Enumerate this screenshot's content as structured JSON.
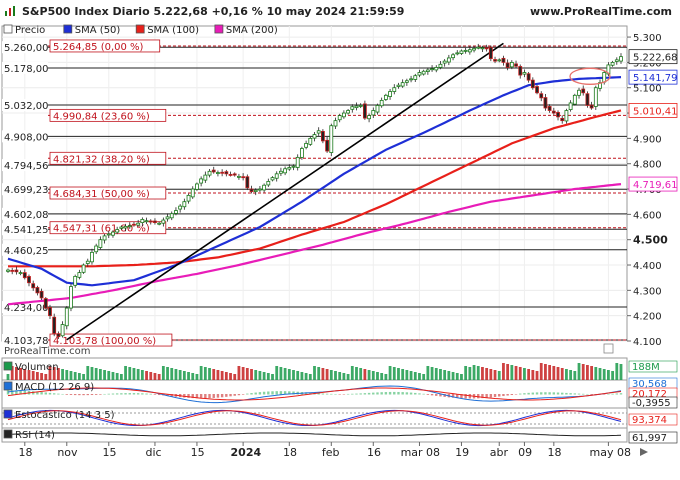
{
  "header": {
    "title": "S&P500 Index Diario 5.222,68 +0,16 % 10 may 2024 21:59:59",
    "site": "www.ProRealTime.com",
    "watermark": "ProRealTime.com"
  },
  "legend": [
    {
      "name": "Precio",
      "color": "#ffffff"
    },
    {
      "name": "SMA (50)",
      "color": "#1e2fd6"
    },
    {
      "name": "SMA (100)",
      "color": "#e8201a"
    },
    {
      "name": "SMA (200)",
      "color": "#e81cb8"
    }
  ],
  "right_labels": {
    "price": "5.222,68",
    "sma50": "5.141,79",
    "sma100": "5.010,41",
    "sma200": "4.719,61"
  },
  "fibo_levels": [
    {
      "text": "5.264,85 (0,00 %)",
      "value": 5264.85
    },
    {
      "text": "4.990,84 (23,60 %)",
      "value": 4990.84
    },
    {
      "text": "4.821,32 (38,20 %)",
      "value": 4821.32
    },
    {
      "text": "4.684,31 (50,00 %)",
      "value": 4684.31
    },
    {
      "text": "4.547,31 (61,80 %)",
      "value": 4547.31
    },
    {
      "text": "4.103,78 (100,00 %)",
      "value": 4103.78
    }
  ],
  "h_levels": [
    {
      "text": "5.260,00",
      "value": 5260
    },
    {
      "text": "5.178,00",
      "value": 5178
    },
    {
      "text": "5.032,00",
      "value": 5032
    },
    {
      "text": "4.908,00",
      "value": 4908
    },
    {
      "text": "4.794,56",
      "value": 4794.56
    },
    {
      "text": "4.699,23",
      "value": 4699.23
    },
    {
      "text": "4.602,08",
      "value": 4602.08
    },
    {
      "text": "4.541,25",
      "value": 4541.25
    },
    {
      "text": "4.460,25",
      "value": 4460.25
    },
    {
      "text": "4.234,00",
      "value": 4234
    },
    {
      "text": "4.103,78",
      "value": 4103.78
    }
  ],
  "y_ticks": [
    {
      "text": "5.300",
      "value": 5300
    },
    {
      "text": "5.200",
      "value": 5200
    },
    {
      "text": "5.100",
      "value": 5100
    },
    {
      "text": "5.000",
      "value": 5000
    },
    {
      "text": "4.900",
      "value": 4900
    },
    {
      "text": "4.800",
      "value": 4800
    },
    {
      "text": "4.700",
      "value": 4700
    },
    {
      "text": "4.600",
      "value": 4600
    },
    {
      "text": "4.500",
      "value": 4500
    },
    {
      "text": "4.400",
      "value": 4400
    },
    {
      "text": "4.300",
      "value": 4300
    },
    {
      "text": "4.200",
      "value": 4200
    },
    {
      "text": "4.100",
      "value": 4100
    }
  ],
  "x_ticks": [
    {
      "text": "18",
      "i": 4
    },
    {
      "text": "nov",
      "i": 14
    },
    {
      "text": "15",
      "i": 24
    },
    {
      "text": "dic",
      "i": 35
    },
    {
      "text": "15",
      "i": 45
    },
    {
      "text": "2024",
      "i": 56
    },
    {
      "text": "18",
      "i": 67
    },
    {
      "text": "feb",
      "i": 77
    },
    {
      "text": "16",
      "i": 87
    },
    {
      "text": "mar 08",
      "i": 98
    },
    {
      "text": "19",
      "i": 108
    },
    {
      "text": "abr",
      "i": 117
    },
    {
      "text": "09",
      "i": 123
    },
    {
      "text": "18",
      "i": 130
    },
    {
      "text": "may 08",
      "i": 143
    }
  ],
  "panels": {
    "volume": {
      "label": "Volumen",
      "value": "188M"
    },
    "macd": {
      "label": "MACD (12 26 9)",
      "values": [
        "30,568",
        "20,172",
        "-0,3955"
      ]
    },
    "stoch": {
      "label": "Estocástico (14 3 5)",
      "value": "93,374"
    },
    "rsi": {
      "label": "RSI (14)",
      "value": "61,997"
    }
  },
  "chart_data": {
    "type": "candlestick",
    "title": "S&P500 Index Diario",
    "ylim": [
      4100,
      5320
    ],
    "n_bars": 147,
    "anchors": [
      [
        0,
        4380
      ],
      [
        3,
        4370
      ],
      [
        6,
        4310
      ],
      [
        8,
        4270
      ],
      [
        9,
        4230
      ],
      [
        10,
        4200
      ],
      [
        11,
        4130
      ],
      [
        12,
        4117
      ],
      [
        13,
        4165
      ],
      [
        14,
        4230
      ],
      [
        15,
        4315
      ],
      [
        16,
        4355
      ],
      [
        17,
        4370
      ],
      [
        18,
        4400
      ],
      [
        19,
        4415
      ],
      [
        20,
        4450
      ],
      [
        22,
        4500
      ],
      [
        23,
        4515
      ],
      [
        25,
        4530
      ],
      [
        27,
        4550
      ],
      [
        29,
        4555
      ],
      [
        30,
        4560
      ],
      [
        31,
        4565
      ],
      [
        32,
        4580
      ],
      [
        34,
        4570
      ],
      [
        36,
        4565
      ],
      [
        38,
        4590
      ],
      [
        40,
        4615
      ],
      [
        42,
        4650
      ],
      [
        44,
        4700
      ],
      [
        46,
        4740
      ],
      [
        48,
        4770
      ],
      [
        50,
        4765
      ],
      [
        52,
        4760
      ],
      [
        54,
        4755
      ],
      [
        56,
        4745
      ],
      [
        57,
        4705
      ],
      [
        58,
        4690
      ],
      [
        60,
        4700
      ],
      [
        62,
        4730
      ],
      [
        64,
        4760
      ],
      [
        66,
        4780
      ],
      [
        68,
        4790
      ],
      [
        70,
        4860
      ],
      [
        72,
        4900
      ],
      [
        74,
        4930
      ],
      [
        75,
        4890
      ],
      [
        76,
        4850
      ],
      [
        77,
        4950
      ],
      [
        79,
        4990
      ],
      [
        81,
        5010
      ],
      [
        82,
        5025
      ],
      [
        84,
        5030
      ],
      [
        85,
        4980
      ],
      [
        86,
        4990
      ],
      [
        88,
        5030
      ],
      [
        90,
        5070
      ],
      [
        92,
        5100
      ],
      [
        94,
        5120
      ],
      [
        96,
        5135
      ],
      [
        98,
        5160
      ],
      [
        100,
        5170
      ],
      [
        102,
        5180
      ],
      [
        104,
        5205
      ],
      [
        106,
        5230
      ],
      [
        108,
        5245
      ],
      [
        110,
        5250
      ],
      [
        112,
        5260
      ],
      [
        114,
        5255
      ],
      [
        115,
        5215
      ],
      [
        116,
        5205
      ],
      [
        117,
        5210
      ],
      [
        118,
        5200
      ],
      [
        119,
        5180
      ],
      [
        120,
        5200
      ],
      [
        121,
        5185
      ],
      [
        122,
        5150
      ],
      [
        123,
        5160
      ],
      [
        124,
        5130
      ],
      [
        125,
        5100
      ],
      [
        126,
        5080
      ],
      [
        127,
        5060
      ],
      [
        128,
        5020
      ],
      [
        129,
        5010
      ],
      [
        130,
        5000
      ],
      [
        131,
        4985
      ],
      [
        132,
        4970
      ],
      [
        133,
        5010
      ],
      [
        134,
        5040
      ],
      [
        135,
        5070
      ],
      [
        136,
        5090
      ],
      [
        137,
        5080
      ],
      [
        138,
        5030
      ],
      [
        139,
        5020
      ],
      [
        140,
        5100
      ],
      [
        141,
        5120
      ],
      [
        142,
        5160
      ],
      [
        143,
        5190
      ],
      [
        144,
        5200
      ],
      [
        145,
        5210
      ],
      [
        146,
        5222.68
      ]
    ],
    "sma50": [
      [
        0,
        4425
      ],
      [
        8,
        4385
      ],
      [
        14,
        4330
      ],
      [
        20,
        4320
      ],
      [
        30,
        4340
      ],
      [
        40,
        4400
      ],
      [
        50,
        4475
      ],
      [
        60,
        4550
      ],
      [
        70,
        4650
      ],
      [
        80,
        4760
      ],
      [
        90,
        4855
      ],
      [
        100,
        4930
      ],
      [
        110,
        5010
      ],
      [
        118,
        5070
      ],
      [
        124,
        5110
      ],
      [
        130,
        5125
      ],
      [
        136,
        5135
      ],
      [
        146,
        5141.79
      ]
    ],
    "sma100": [
      [
        0,
        4395
      ],
      [
        10,
        4395
      ],
      [
        20,
        4395
      ],
      [
        30,
        4400
      ],
      [
        40,
        4410
      ],
      [
        50,
        4430
      ],
      [
        60,
        4465
      ],
      [
        70,
        4520
      ],
      [
        80,
        4570
      ],
      [
        90,
        4640
      ],
      [
        100,
        4720
      ],
      [
        110,
        4800
      ],
      [
        120,
        4880
      ],
      [
        130,
        4940
      ],
      [
        140,
        4985
      ],
      [
        146,
        5010.41
      ]
    ],
    "sma200": [
      [
        0,
        4245
      ],
      [
        15,
        4270
      ],
      [
        25,
        4300
      ],
      [
        35,
        4335
      ],
      [
        45,
        4365
      ],
      [
        55,
        4400
      ],
      [
        65,
        4440
      ],
      [
        75,
        4480
      ],
      [
        85,
        4525
      ],
      [
        95,
        4565
      ],
      [
        105,
        4610
      ],
      [
        115,
        4650
      ],
      [
        125,
        4675
      ],
      [
        135,
        4700
      ],
      [
        146,
        4719.61
      ]
    ],
    "trendline": [
      [
        14,
        4105
      ],
      [
        118,
        5275
      ]
    ]
  }
}
